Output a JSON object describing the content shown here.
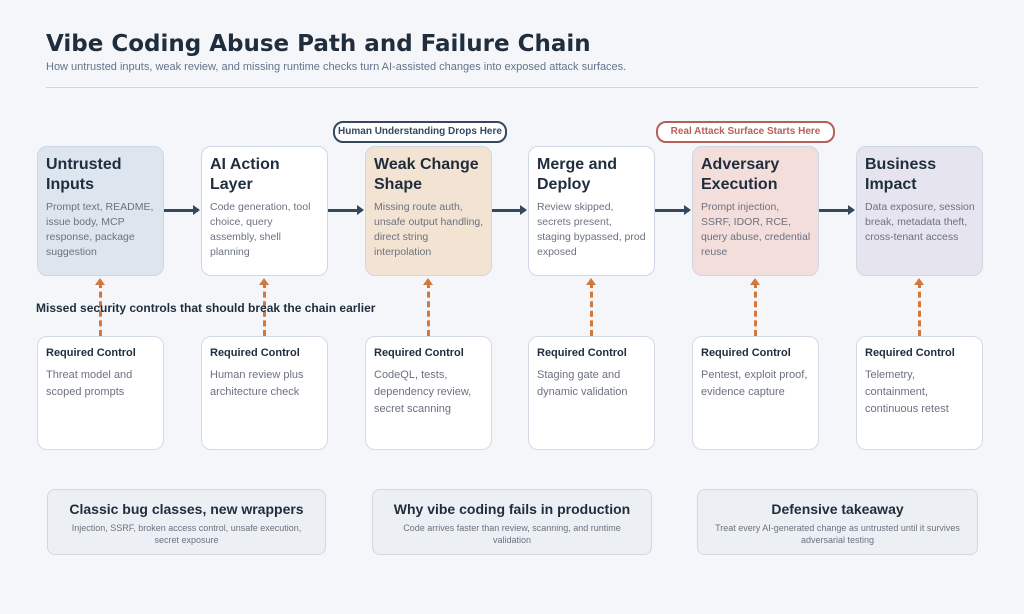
{
  "header": {
    "title": "Vibe Coding Abuse Path and Failure Chain",
    "subtitle": "How untrusted inputs, weak review, and missing runtime checks turn AI-assisted changes into exposed attack surfaces."
  },
  "callouts": [
    {
      "label": "Human Understanding Drops Here",
      "color": "#34495e"
    },
    {
      "label": "Real Attack Surface Starts Here",
      "color": "#b5605a"
    }
  ],
  "stages": [
    {
      "title": "Untrusted Inputs",
      "desc": "Prompt text, README, issue body, MCP response, package suggestion",
      "bg": "#dde5ee"
    },
    {
      "title": "AI Action Layer",
      "desc": "Code generation, tool choice, query assembly, shell planning",
      "bg": "#ffffff"
    },
    {
      "title": "Weak Change Shape",
      "desc": "Missing route auth, unsafe output handling, direct string interpolation",
      "bg": "#f3e3d3"
    },
    {
      "title": "Merge and Deploy",
      "desc": "Review skipped, secrets present, staging bypassed, prod exposed",
      "bg": "#ffffff"
    },
    {
      "title": "Adversary Execution",
      "desc": "Prompt injection, SSRF, IDOR, RCE, query abuse, credential reuse",
      "bg": "#f3dedb"
    },
    {
      "title": "Business Impact",
      "desc": "Data exposure, session break, metadata theft, cross-tenant access",
      "bg": "#e6e4ef"
    }
  ],
  "missed_label": "Missed security controls that should break the chain earlier",
  "controls": [
    {
      "heading": "Required Control",
      "text": "Threat model and scoped prompts"
    },
    {
      "heading": "Required Control",
      "text": "Human review plus architecture check"
    },
    {
      "heading": "Required Control",
      "text": "CodeQL, tests, dependency review, secret scanning"
    },
    {
      "heading": "Required Control",
      "text": "Staging gate and dynamic validation"
    },
    {
      "heading": "Required Control",
      "text": "Pentest, exploit proof, evidence capture"
    },
    {
      "heading": "Required Control",
      "text": "Telemetry, containment, continuous retest"
    }
  ],
  "notes": [
    {
      "title": "Classic bug classes, new wrappers",
      "text": "Injection, SSRF, broken access control, unsafe execution, secret exposure"
    },
    {
      "title": "Why vibe coding fails in production",
      "text": "Code arrives faster than review, scanning, and runtime validation"
    },
    {
      "title": "Defensive takeaway",
      "text": "Treat every AI-generated change as untrusted until it survives adversarial testing"
    }
  ]
}
